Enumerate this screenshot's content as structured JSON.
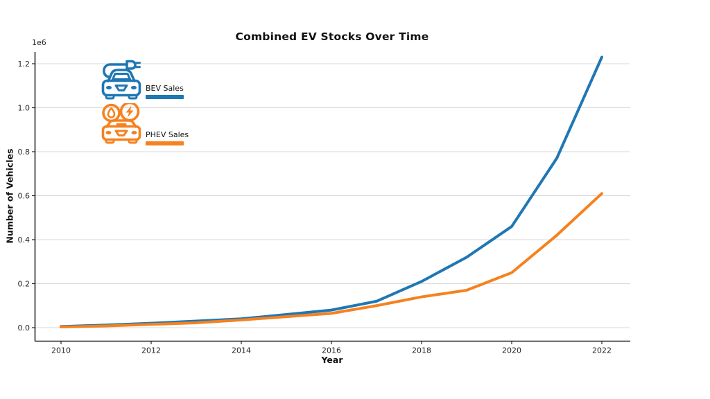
{
  "window": {
    "background": "#ffffff"
  },
  "chart_data": {
    "type": "line",
    "title": "Combined EV Stocks Over Time",
    "xlabel": "Year",
    "ylabel": "Number of Vehicles",
    "y_offset_label": "1e6",
    "x": [
      2010,
      2011,
      2012,
      2013,
      2014,
      2015,
      2016,
      2017,
      2018,
      2019,
      2020,
      2021,
      2022
    ],
    "series": [
      {
        "name": "BEV Sales",
        "color": "#1f77b4",
        "values_millions": [
          0.005,
          0.012,
          0.02,
          0.03,
          0.04,
          0.06,
          0.08,
          0.12,
          0.21,
          0.32,
          0.46,
          0.77,
          1.23
        ]
      },
      {
        "name": "PHEV Sales",
        "color": "#f5821f",
        "values_millions": [
          0.003,
          0.008,
          0.015,
          0.022,
          0.035,
          0.05,
          0.065,
          0.1,
          0.14,
          0.17,
          0.25,
          0.42,
          0.61
        ]
      }
    ],
    "xticks": [
      2010,
      2012,
      2014,
      2016,
      2018,
      2020,
      2022
    ],
    "yticks": [
      "0.0",
      "0.2",
      "0.4",
      "0.6",
      "0.8",
      "1.0",
      "1.2"
    ],
    "xlim": [
      2009.4,
      2022.65
    ],
    "ylim": [
      -0.06,
      1.25
    ],
    "grid": "horizontal",
    "gridline_color": "#d8d8d8",
    "legend_position": "upper-left"
  },
  "legend": {
    "items": [
      {
        "label": "BEV Sales",
        "color": "#1f77b4",
        "icon": "electric-car-plug-icon"
      },
      {
        "label": "PHEV Sales",
        "color": "#f5821f",
        "icon": "hybrid-car-fuel-bolt-icon"
      }
    ]
  }
}
